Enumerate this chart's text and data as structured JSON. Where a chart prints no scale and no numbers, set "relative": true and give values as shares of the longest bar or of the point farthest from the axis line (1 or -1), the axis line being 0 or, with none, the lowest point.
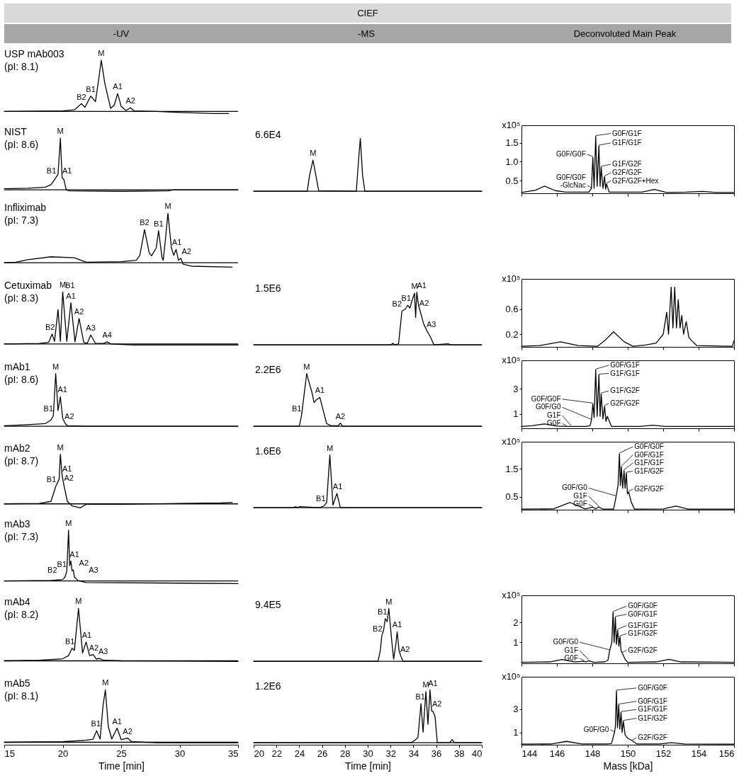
{
  "chart_data": [
    {
      "type": "other",
      "title": "CIEF",
      "annotations": [
        "-UV",
        "-MS",
        "Deconvoluted Main Peak"
      ]
    },
    {
      "type": "line",
      "relative": true,
      "title": "USP mAb003",
      "subtitle": "(pI: 8.1)",
      "xlim": [
        15,
        35
      ],
      "tick_labels": false,
      "series": [
        {
          "color": "#000000",
          "x": [
            15,
            20,
            21,
            21.6,
            21.9,
            22.4,
            22.8,
            23.0,
            23.3,
            23.6,
            24.1,
            24.4,
            24.7,
            25.0,
            25.4,
            25.8,
            26.1,
            28,
            30,
            33,
            34.2
          ],
          "values": [
            0,
            0.01,
            0.03,
            0.15,
            0.08,
            0.3,
            0.19,
            0.5,
            1.0,
            0.55,
            0.06,
            0.12,
            0.35,
            0.1,
            0.02,
            0.07,
            0.01,
            0,
            -0.02,
            -0.04,
            -0.04
          ]
        }
      ],
      "annotations": [
        {
          "text": "M",
          "x": 23.3,
          "y": 1.0
        },
        {
          "text": "B1",
          "x": 22.4,
          "y": 0.3
        },
        {
          "text": "A1",
          "x": 24.7,
          "y": 0.35
        },
        {
          "text": "B2",
          "x": 21.6,
          "y": 0.15
        },
        {
          "text": "A2",
          "x": 25.8,
          "y": 0.07
        }
      ]
    },
    {
      "type": "line",
      "relative": true,
      "title": "NIST",
      "subtitle": "(pI: 8.6)",
      "xlim": [
        15,
        35
      ],
      "tick_labels": false,
      "series": [
        {
          "color": "#000000",
          "x": [
            15,
            17,
            18.5,
            19.0,
            19.4,
            19.6,
            19.8,
            19.95,
            20.1,
            20.3,
            20.6,
            25,
            29,
            29.5,
            35
          ],
          "values": [
            0.02,
            0.03,
            0.05,
            0.1,
            0.23,
            0.3,
            1.0,
            0.23,
            0.2,
            0.0,
            -0.02,
            -0.03,
            -0.02,
            0,
            0
          ]
        }
      ],
      "annotations": [
        {
          "text": "M",
          "x": 19.8,
          "y": 1.0
        },
        {
          "text": "B1",
          "x": 19.4,
          "y": 0.23
        },
        {
          "text": "A1",
          "x": 19.95,
          "y": 0.23
        }
      ]
    },
    {
      "type": "line",
      "relative": true,
      "xlim": [
        20,
        40
      ],
      "tick_labels": false,
      "series": [
        {
          "color": "#000000",
          "x": [
            20,
            24.7,
            24.9,
            25.2,
            25.5,
            25.7,
            29.0,
            29.2,
            29.35,
            29.55,
            29.75,
            40
          ],
          "values": [
            0,
            0,
            0.3,
            0.59,
            0.25,
            0.01,
            0,
            0.6,
            1.0,
            0.3,
            0,
            0
          ]
        }
      ],
      "annotations": [
        "6.6E4",
        {
          "text": "M",
          "x": 25.2,
          "y": 0.59
        }
      ]
    },
    {
      "type": "line",
      "ylim": [
        0.17,
        1.96
      ],
      "yticks": [
        0.5,
        {
          "value": 1,
          "label": "1.0"
        },
        1.5
      ],
      "ylabel": "x10⁵",
      "xlim": [
        144,
        156
      ],
      "xticks": [
        144,
        146,
        148,
        150,
        152,
        154,
        156
      ],
      "tick_labels": "y",
      "series": [
        {
          "color": "#000000",
          "x": [
            144,
            144.8,
            145.3,
            145.9,
            146.5,
            147.8,
            147.95,
            148.03,
            148.1,
            148.19,
            148.27,
            148.37,
            148.44,
            148.5,
            148.6,
            148.69,
            148.75,
            148.8,
            148.95,
            150.8,
            151.5,
            152.2,
            153.3,
            154.2,
            155,
            156
          ],
          "values": [
            0.19,
            0.25,
            0.36,
            0.24,
            0.2,
            0.2,
            0.3,
            1.12,
            0.3,
            1.67,
            0.35,
            1.42,
            0.35,
            0.86,
            0.3,
            0.61,
            0.28,
            0.42,
            0.2,
            0.2,
            0.27,
            0.19,
            0.2,
            0.22,
            0.19,
            0.19
          ]
        }
      ],
      "annotations": [
        {
          "text": "G0F/G1F",
          "x": 148.19,
          "y": 1.67
        },
        {
          "text": "G1F/G1F",
          "x": 148.37,
          "y": 1.42
        },
        {
          "text": "G0F/G0F",
          "x": 148.03,
          "y": 1.12
        },
        {
          "text": "G1F/G2F",
          "x": 148.5,
          "y": 0.86
        },
        {
          "text": "G0F/G0F\n-GlcNac",
          "x": 147.95,
          "y": 0.3
        },
        {
          "text": "G2F/G2F",
          "x": 148.69,
          "y": 0.61
        },
        {
          "text": "G2F/G2F+Hex",
          "x": 148.8,
          "y": 0.42
        }
      ]
    },
    {
      "type": "line",
      "relative": true,
      "title": "Infliximab",
      "subtitle": "(pI: 7.3)",
      "xlim": [
        15,
        35
      ],
      "tick_labels": false,
      "series": [
        {
          "color": "#000000",
          "x": [
            15,
            16,
            17,
            19,
            21,
            22,
            25,
            26.3,
            26.6,
            27.0,
            27.4,
            27.6,
            28.0,
            28.2,
            28.5,
            28.6,
            28.8,
            29.0,
            29.3,
            29.5,
            29.7,
            29.9,
            30.1,
            30.3,
            31,
            34.5
          ],
          "values": [
            0,
            0.01,
            0.06,
            0.12,
            0.1,
            0.01,
            0.02,
            0.05,
            0.15,
            0.67,
            0.2,
            0.14,
            0.3,
            0.65,
            0.1,
            0.05,
            0.5,
            1.0,
            0.3,
            0.15,
            0.27,
            0.05,
            0.09,
            -0.03,
            -0.07,
            -0.09
          ]
        }
      ],
      "annotations": [
        {
          "text": "M",
          "x": 29.0,
          "y": 1.0
        },
        {
          "text": "B2",
          "x": 27.0,
          "y": 0.67
        },
        {
          "text": "B1",
          "x": 28.2,
          "y": 0.65
        },
        {
          "text": "A1",
          "x": 29.7,
          "y": 0.27
        },
        {
          "text": "A2",
          "x": 30.1,
          "y": 0.09
        }
      ]
    },
    {
      "type": "line",
      "relative": true,
      "title": "Cetuximab",
      "subtitle": "(pI: 8.3)",
      "xlim": [
        15,
        35
      ],
      "tick_labels": false,
      "series": [
        {
          "color": "#000000",
          "x": [
            15,
            18,
            18.8,
            19.1,
            19.3,
            19.6,
            19.8,
            20.0,
            20.35,
            20.7,
            21.05,
            21.4,
            21.8,
            22.1,
            22.4,
            22.8,
            23.5,
            23.8,
            24.1,
            26,
            35
          ],
          "values": [
            0,
            0.01,
            0.03,
            0.19,
            0.05,
            0.66,
            0.05,
            1.0,
            0.05,
            0.79,
            0.04,
            0.49,
            0.03,
            0.01,
            0.17,
            0.01,
            0.01,
            0.04,
            0,
            -0.02,
            -0.02
          ]
        }
      ],
      "annotations": [
        {
          "text": "M",
          "x": 20.0,
          "y": 1.0
        },
        {
          "text": "A1",
          "x": 20.7,
          "y": 0.79
        },
        {
          "text": "B1",
          "x": 19.6,
          "y": 0.66
        },
        {
          "text": "A2",
          "x": 21.4,
          "y": 0.49
        },
        {
          "text": "B2",
          "x": 19.1,
          "y": 0.19
        },
        {
          "text": "A3",
          "x": 22.4,
          "y": 0.17
        },
        {
          "text": "A4",
          "x": 23.8,
          "y": 0.04
        }
      ]
    },
    {
      "type": "line",
      "relative": true,
      "xlim": [
        20,
        40
      ],
      "tick_labels": false,
      "series": [
        {
          "color": "#000000",
          "x": [
            20,
            32.0,
            32.2,
            32.4,
            32.7,
            33.0,
            33.3,
            33.5,
            33.7,
            33.9,
            34.1,
            34.2,
            34.3,
            34.45,
            34.57,
            34.9,
            35.2,
            35.5,
            35.8,
            37.05,
            37.3,
            40
          ],
          "values": [
            0,
            0,
            0.03,
            0,
            0.02,
            0.64,
            0.68,
            0.75,
            0.7,
            0.85,
            0.98,
            0.52,
            1.0,
            0.75,
            0.66,
            0.4,
            0.26,
            0.15,
            0,
            0.02,
            0,
            0
          ]
        }
      ],
      "annotations": [
        "1.5E6",
        {
          "text": "M",
          "x": 34.1,
          "y": 0.98
        },
        {
          "text": "A1",
          "x": 34.3,
          "y": 1.0
        },
        {
          "text": "B1",
          "x": 33.5,
          "y": 0.75
        },
        {
          "text": "B2",
          "x": 33.0,
          "y": 0.64
        },
        {
          "text": "A2",
          "x": 34.57,
          "y": 0.66
        },
        {
          "text": "A3",
          "x": 35.2,
          "y": 0.26
        }
      ]
    },
    {
      "type": "line",
      "ylim": [
        0,
        1.08
      ],
      "yticks": [
        0.2,
        0.6
      ],
      "ylabel": "x10⁵",
      "xlim": [
        144,
        156
      ],
      "xticks": [
        144,
        146,
        148,
        150,
        152,
        154,
        156
      ],
      "tick_labels": "y",
      "series": [
        {
          "color": "#000000",
          "x": [
            144,
            145,
            146.2,
            147.2,
            148.3,
            148.7,
            149.2,
            149.8,
            150.3,
            151.0,
            151.6,
            152.0,
            152.2,
            152.3,
            152.45,
            152.55,
            152.65,
            152.75,
            152.85,
            152.95,
            153.05,
            153.15,
            153.3,
            153.45,
            153.6,
            153.9,
            155.9,
            156
          ],
          "values": [
            0.01,
            0.02,
            0.08,
            0.02,
            0.01,
            0.1,
            0.24,
            0.08,
            0.01,
            0.03,
            0.06,
            0.2,
            0.55,
            0.2,
            0.95,
            0.3,
            0.95,
            0.3,
            0.75,
            0.3,
            0.5,
            0.2,
            0.4,
            0.15,
            0.1,
            0.02,
            0.01,
            0.1
          ]
        }
      ]
    },
    {
      "type": "line",
      "relative": true,
      "title": "mAb1",
      "subtitle": "(pI: 8.6)",
      "xlim": [
        15,
        35
      ],
      "tick_labels": false,
      "series": [
        {
          "color": "#000000",
          "x": [
            15,
            17,
            18.5,
            19.0,
            19.2,
            19.4,
            19.6,
            19.8,
            20.0,
            20.2,
            20.4,
            22,
            35
          ],
          "values": [
            0.01,
            0.03,
            0.05,
            0.12,
            0.2,
            1.0,
            0.3,
            0.56,
            0.15,
            0.06,
            0.01,
            0,
            0
          ]
        }
      ],
      "annotations": [
        {
          "text": "M",
          "x": 19.4,
          "y": 1.0
        },
        {
          "text": "A1",
          "x": 19.8,
          "y": 0.56
        },
        {
          "text": "B1",
          "x": 19.2,
          "y": 0.2
        },
        {
          "text": "A2",
          "x": 20.2,
          "y": 0.06
        }
      ]
    },
    {
      "type": "line",
      "relative": true,
      "xlim": [
        20,
        40
      ],
      "tick_labels": false,
      "series": [
        {
          "color": "#000000",
          "x": [
            20,
            24.0,
            24.2,
            24.65,
            24.9,
            25.1,
            25.3,
            25.5,
            25.8,
            26.1,
            26.4,
            26.8,
            27.4,
            27.6,
            27.8,
            40
          ],
          "values": [
            0,
            0,
            0.21,
            1.0,
            0.8,
            0.65,
            0.45,
            0.5,
            0.55,
            0.3,
            0.05,
            0.01,
            0.01,
            0.06,
            0,
            0
          ]
        }
      ],
      "annotations": [
        "2.2E6",
        {
          "text": "M",
          "x": 24.65,
          "y": 1.0
        },
        {
          "text": "A1",
          "x": 25.8,
          "y": 0.55
        },
        {
          "text": "B1",
          "x": 24.2,
          "y": 0.21
        },
        {
          "text": "A2",
          "x": 27.6,
          "y": 0.06
        }
      ]
    },
    {
      "type": "line",
      "ylim": [
        -0.15,
        5.25
      ],
      "yticks": [
        1,
        3
      ],
      "ylabel": "x10⁵",
      "xlim": [
        144,
        156
      ],
      "xticks": [
        144,
        146,
        148,
        150,
        152,
        154,
        156
      ],
      "tick_labels": "y",
      "series": [
        {
          "color": "#000000",
          "x": [
            144,
            144.6,
            145.3,
            146.0,
            146.54,
            146.8,
            147.6,
            147.87,
            147.95,
            148.03,
            148.1,
            148.19,
            148.27,
            148.37,
            148.44,
            148.5,
            148.6,
            148.69,
            148.77,
            148.84,
            149.08,
            150.7,
            151.4,
            152.1,
            156
          ],
          "values": [
            0,
            0.05,
            0.2,
            0.03,
            0,
            0,
            0,
            0.05,
            0.5,
            1.8,
            0.7,
            4.5,
            0.8,
            4.1,
            0.8,
            2.6,
            0.6,
            1.6,
            0.4,
            0.8,
            0,
            0,
            0.1,
            0,
            0
          ]
        }
      ],
      "annotations": [
        {
          "text": "G0F/G1F",
          "x": 148.19,
          "y": 4.5
        },
        {
          "text": "G0F/G0F",
          "x": 148.03,
          "y": 1.8
        },
        {
          "text": "G1F/G1F",
          "x": 148.37,
          "y": 4.1
        },
        {
          "text": "G0F/G0",
          "x": 147.95,
          "y": 0.5
        },
        {
          "text": "G1F/G2F",
          "x": 148.5,
          "y": 2.6
        },
        {
          "text": "G2F/G2F",
          "x": 148.69,
          "y": 1.6
        },
        {
          "text": "G0F",
          "x": 146.54,
          "y": 0
        },
        {
          "text": "G1F",
          "x": 146.8,
          "y": 0
        }
      ]
    },
    {
      "type": "line",
      "relative": true,
      "title": "mAb2",
      "subtitle": "(pI: 8.7)",
      "xlim": [
        15,
        35
      ],
      "tick_labels": false,
      "series": [
        {
          "color": "#000000",
          "x": [
            15,
            18,
            19.0,
            19.4,
            19.7,
            19.8,
            19.95,
            20.1,
            20.4,
            20.8,
            21.5,
            22,
            25,
            33.5,
            34.5
          ],
          "values": [
            0,
            0.01,
            0.05,
            0.35,
            0.5,
            1.0,
            0.57,
            0.38,
            0.05,
            -0.04,
            -0.08,
            -0.01,
            -0.01,
            0.02,
            0.03
          ]
        }
      ],
      "annotations": [
        {
          "text": "M",
          "x": 19.8,
          "y": 1.0
        },
        {
          "text": "A1",
          "x": 19.95,
          "y": 0.57
        },
        {
          "text": "B1",
          "x": 19.4,
          "y": 0.35
        },
        {
          "text": "A2",
          "x": 20.1,
          "y": 0.38
        }
      ]
    },
    {
      "type": "line",
      "relative": true,
      "xlim": [
        20,
        40
      ],
      "tick_labels": false,
      "series": [
        {
          "color": "#000000",
          "x": [
            20,
            23.5,
            23.7,
            23.85,
            24.0,
            25.8,
            26.2,
            26.4,
            26.68,
            26.95,
            27.3,
            27.6,
            40
          ],
          "values": [
            0,
            0,
            0.02,
            0,
            0.02,
            0,
            0.04,
            0.1,
            1.0,
            0.05,
            0.27,
            0,
            0
          ]
        }
      ],
      "annotations": [
        "1.6E6",
        {
          "text": "M",
          "x": 26.68,
          "y": 1.0
        },
        {
          "text": "A1",
          "x": 27.3,
          "y": 0.27
        },
        {
          "text": "B1",
          "x": 26.2,
          "y": 0.04
        }
      ]
    },
    {
      "type": "line",
      "ylim": [
        0.03,
        2.47
      ],
      "yticks": [
        0.5,
        1.5
      ],
      "ylabel": "x10⁵",
      "xlim": [
        144,
        156
      ],
      "xticks": [
        144,
        146,
        148,
        150,
        152,
        154,
        156
      ],
      "tick_labels": "y",
      "series": [
        {
          "color": "#000000",
          "x": [
            144,
            145.8,
            146.73,
            147.6,
            148.03,
            148.2,
            148.36,
            148.6,
            149.2,
            149.34,
            149.45,
            149.53,
            149.58,
            149.64,
            149.71,
            149.79,
            149.85,
            149.92,
            149.98,
            150.05,
            150.2,
            150.38,
            152.0,
            152.72,
            153.4,
            156
          ],
          "values": [
            0.05,
            0.06,
            0.29,
            0.06,
            0.12,
            0.06,
            0.13,
            0.05,
            0.05,
            0.5,
            0.9,
            2.04,
            0.9,
            1.57,
            0.8,
            1.44,
            0.8,
            1.35,
            0.6,
            0.67,
            0.3,
            0.05,
            0.06,
            0.16,
            0.05,
            0.05
          ]
        }
      ],
      "annotations": [
        {
          "text": "G0F/G0F",
          "x": 149.53,
          "y": 2.04
        },
        {
          "text": "G0F/G1F",
          "x": 149.64,
          "y": 1.57
        },
        {
          "text": "G0F/G0",
          "x": 149.34,
          "y": 0.5
        },
        {
          "text": "G1F/G1F",
          "x": 149.79,
          "y": 1.44
        },
        {
          "text": "G1F/G2F",
          "x": 149.92,
          "y": 1.35
        },
        {
          "text": "G0F",
          "x": 148.03,
          "y": 0.12
        },
        {
          "text": "G1F",
          "x": 148.36,
          "y": 0.13
        },
        {
          "text": "G2F/G2F",
          "x": 150.05,
          "y": 0.67
        }
      ]
    },
    {
      "type": "line",
      "relative": true,
      "title": "mAb3",
      "subtitle": "(pI: 7.3)",
      "xlim": [
        15,
        35
      ],
      "tick_labels": false,
      "series": [
        {
          "color": "#000000",
          "x": [
            15,
            19,
            20.0,
            20.2,
            20.35,
            20.5,
            20.6,
            20.7,
            20.8,
            20.9,
            21.0,
            21.3,
            22,
            35
          ],
          "values": [
            0,
            0.01,
            0.03,
            0.08,
            0.19,
            1.0,
            0.3,
            0.39,
            0.2,
            0.22,
            0.08,
            0.01,
            -0.03,
            -0.05
          ]
        }
      ],
      "annotations": [
        {
          "text": "M",
          "x": 20.5,
          "y": 1.0
        },
        {
          "text": "A1",
          "x": 20.7,
          "y": 0.39
        },
        {
          "text": "B1",
          "x": 20.35,
          "y": 0.19
        },
        {
          "text": "A2",
          "x": 20.9,
          "y": 0.22
        },
        {
          "text": "B2",
          "x": 20.2,
          "y": 0.08
        },
        {
          "text": "A3",
          "x": 21.0,
          "y": 0.08
        }
      ]
    },
    {
      "type": "line",
      "relative": true,
      "title": "mAb4",
      "subtitle": "(pI: 8.2)",
      "xlim": [
        15,
        35
      ],
      "tick_labels": false,
      "series": [
        {
          "color": "#000000",
          "x": [
            15,
            18,
            20,
            20.5,
            20.8,
            21.0,
            21.35,
            21.7,
            22.0,
            22.3,
            22.6,
            22.9,
            23.1,
            23.5,
            25,
            35
          ],
          "values": [
            0,
            0.01,
            0.04,
            0.1,
            0.24,
            0.2,
            1.0,
            0.15,
            0.36,
            0.1,
            0.12,
            0.03,
            0.05,
            0.01,
            0,
            -0.01
          ]
        }
      ],
      "annotations": [
        {
          "text": "M",
          "x": 21.35,
          "y": 1.0
        },
        {
          "text": "B1",
          "x": 20.8,
          "y": 0.24
        },
        {
          "text": "A1",
          "x": 22.0,
          "y": 0.36
        },
        {
          "text": "A2",
          "x": 22.6,
          "y": 0.12
        },
        {
          "text": "A3",
          "x": 23.1,
          "y": 0.05
        }
      ]
    },
    {
      "type": "line",
      "relative": true,
      "xlim": [
        20,
        40
      ],
      "tick_labels": false,
      "series": [
        {
          "color": "#000000",
          "x": [
            20,
            30.9,
            31.1,
            31.23,
            31.4,
            31.54,
            31.7,
            31.85,
            32.1,
            32.27,
            32.45,
            32.58,
            32.75,
            32.9,
            33.1,
            40
          ],
          "values": [
            0,
            0,
            0.2,
            0.48,
            0.6,
            0.81,
            0.75,
            1.0,
            0.4,
            0.04,
            0.3,
            0.56,
            0.2,
            0.1,
            0,
            0
          ]
        }
      ],
      "annotations": [
        "9.4E5",
        {
          "text": "M",
          "x": 31.85,
          "y": 1.0
        },
        {
          "text": "B1",
          "x": 31.54,
          "y": 0.81
        },
        {
          "text": "A1",
          "x": 32.58,
          "y": 0.56
        },
        {
          "text": "B2",
          "x": 31.23,
          "y": 0.48
        },
        {
          "text": "A2",
          "x": 32.9,
          "y": 0.1
        }
      ]
    },
    {
      "type": "line",
      "ylim": [
        -0.05,
        3.35
      ],
      "yticks": [
        1,
        2
      ],
      "ylabel": "x10⁵",
      "xlim": [
        144,
        156
      ],
      "xticks": [
        144,
        146,
        148,
        150,
        152,
        154,
        156
      ],
      "tick_labels": "y",
      "series": [
        {
          "color": "#000000",
          "x": [
            144,
            145.6,
            146.28,
            147.0,
            147.52,
            147.65,
            147.8,
            148.1,
            148.7,
            148.88,
            148.98,
            149.1,
            149.17,
            149.23,
            149.3,
            149.36,
            149.43,
            149.5,
            149.56,
            149.62,
            149.69,
            149.85,
            149.99,
            151.6,
            152.33,
            153.0,
            156
          ],
          "values": [
            0,
            0.02,
            0.14,
            0.02,
            0.05,
            0.02,
            0.08,
            0,
            0.02,
            0.1,
            0.59,
            1.0,
            2.51,
            1.0,
            2.26,
            0.9,
            1.62,
            0.8,
            1.29,
            0.6,
            0.46,
            0.15,
            0,
            0.02,
            0.15,
            0.02,
            0
          ]
        }
      ],
      "annotations": [
        {
          "text": "G0F/G0F",
          "x": 149.17,
          "y": 2.51
        },
        {
          "text": "G0F/G1F",
          "x": 149.3,
          "y": 2.26
        },
        {
          "text": "G0F/G0",
          "x": 148.98,
          "y": 0.59
        },
        {
          "text": "G1F/G1F",
          "x": 149.43,
          "y": 1.62
        },
        {
          "text": "G1F",
          "x": 147.8,
          "y": 0.08
        },
        {
          "text": "G0F",
          "x": 147.52,
          "y": 0.05
        },
        {
          "text": "G1F/G2F",
          "x": 149.56,
          "y": 1.29
        },
        {
          "text": "G2F/G2F",
          "x": 149.69,
          "y": 0.46
        }
      ]
    },
    {
      "type": "line",
      "relative": true,
      "title": "mAb5",
      "subtitle": "(pI: 8.1)",
      "xlim": [
        15,
        35
      ],
      "xticks": [
        15,
        20,
        25,
        30,
        35
      ],
      "xlabel": "Time [min]",
      "tick_labels": "x",
      "series": [
        {
          "color": "#000000",
          "x": [
            15,
            20,
            22,
            22.6,
            22.9,
            23.2,
            23.45,
            23.65,
            23.9,
            24.2,
            24.65,
            25.0,
            25.55,
            25.9,
            28,
            35
          ],
          "values": [
            0,
            0.01,
            0.04,
            0.06,
            0.22,
            0.06,
            0.7,
            1.0,
            0.3,
            0.06,
            0.27,
            0.05,
            0.08,
            0.01,
            -0.01,
            -0.01
          ]
        }
      ],
      "annotations": [
        {
          "text": "M",
          "x": 23.65,
          "y": 1.0
        },
        {
          "text": "B1",
          "x": 22.9,
          "y": 0.22
        },
        {
          "text": "A1",
          "x": 24.65,
          "y": 0.27
        },
        {
          "text": "A2",
          "x": 25.55,
          "y": 0.08
        }
      ]
    },
    {
      "type": "line",
      "relative": true,
      "xlim": [
        20,
        40
      ],
      "xticks": [
        20,
        22,
        24,
        26,
        28,
        30,
        32,
        34,
        36,
        38,
        40
      ],
      "xlabel": "Time [min]",
      "tick_labels": "x",
      "series": [
        {
          "color": "#000000",
          "x": [
            20,
            33.8,
            34.15,
            34.4,
            34.67,
            34.85,
            35.1,
            35.28,
            35.46,
            35.6,
            35.7,
            35.9,
            36.1,
            37.2,
            37.4,
            37.6,
            40
          ],
          "values": [
            0,
            0,
            0.05,
            0.1,
            0.74,
            0.2,
            0.97,
            0.35,
            1.0,
            0.6,
            0.6,
            0.5,
            0,
            0,
            0.06,
            0,
            0
          ]
        }
      ],
      "annotations": [
        "1.2E6",
        {
          "text": "M",
          "x": 35.1,
          "y": 0.97
        },
        {
          "text": "A1",
          "x": 35.46,
          "y": 1.0
        },
        {
          "text": "B1",
          "x": 34.67,
          "y": 0.74
        },
        {
          "text": "A2",
          "x": 35.7,
          "y": 0.6
        }
      ]
    },
    {
      "type": "line",
      "ylim": [
        -0.05,
        5.8
      ],
      "yticks": [
        1,
        3
      ],
      "ylabel": "x10⁵",
      "xlim": [
        144,
        156
      ],
      "xticks": [
        144,
        146,
        148,
        150,
        152,
        154,
        156
      ],
      "xlabel": "Mass [kDa]",
      "series": [
        {
          "color": "#000000",
          "x": [
            144,
            145.7,
            146.54,
            147.4,
            148.8,
            149.08,
            149.25,
            149.3,
            149.36,
            149.42,
            149.49,
            149.55,
            149.62,
            149.68,
            149.75,
            149.85,
            150.0,
            150.25,
            150.5,
            151.8,
            152.46,
            153.2,
            156
          ],
          "values": [
            0,
            0.02,
            0.24,
            0.02,
            0.02,
            0.05,
            1.0,
            1.5,
            4.59,
            1.4,
            3.39,
            1.3,
            2.74,
            1.0,
            1.98,
            0.8,
            0.5,
            0.3,
            0.02,
            0.02,
            0.13,
            0.02,
            0
          ]
        }
      ],
      "annotations": [
        {
          "text": "G0F/G0F",
          "x": 149.36,
          "y": 4.59
        },
        {
          "text": "G0F/G1F",
          "x": 149.49,
          "y": 3.39
        },
        {
          "text": "G1F/G1F",
          "x": 149.62,
          "y": 2.74
        },
        {
          "text": "G0F/G0",
          "x": 149.25,
          "y": 1.0
        },
        {
          "text": "G1F/G2F",
          "x": 149.75,
          "y": 1.98
        },
        {
          "text": "G2F/G2F",
          "x": 150.25,
          "y": 0.3
        }
      ]
    }
  ]
}
